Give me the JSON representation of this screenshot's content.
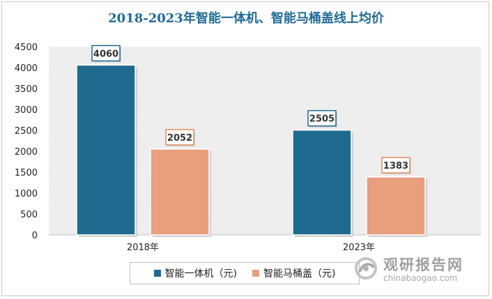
{
  "chart_data": {
    "type": "bar",
    "title": "2018-2023年智能一体机、智能马桶盖线上均价",
    "categories": [
      "2018年",
      "2023年"
    ],
    "series": [
      {
        "name": "智能一体机（元)",
        "values": [
          4060,
          2505
        ],
        "color": "#1f6a8f"
      },
      {
        "name": "智能马桶盖（元)",
        "values": [
          2052,
          1383
        ],
        "color": "#e99e7d"
      }
    ],
    "ylim": [
      0,
      4500
    ],
    "yticks": [
      0,
      500,
      1000,
      1500,
      2000,
      2500,
      3000,
      3500,
      4000,
      4500
    ],
    "legend_position": "bottom"
  },
  "colors": {
    "title": "#1f6a96",
    "plot_background": "#efefef",
    "series1_label_border": "#1f6a8f",
    "series2_label_border": "#e38a60"
  },
  "watermark": {
    "cn": "观研报告网",
    "en": "chinabaogao.com",
    "icon": "swirl-logo-icon"
  }
}
